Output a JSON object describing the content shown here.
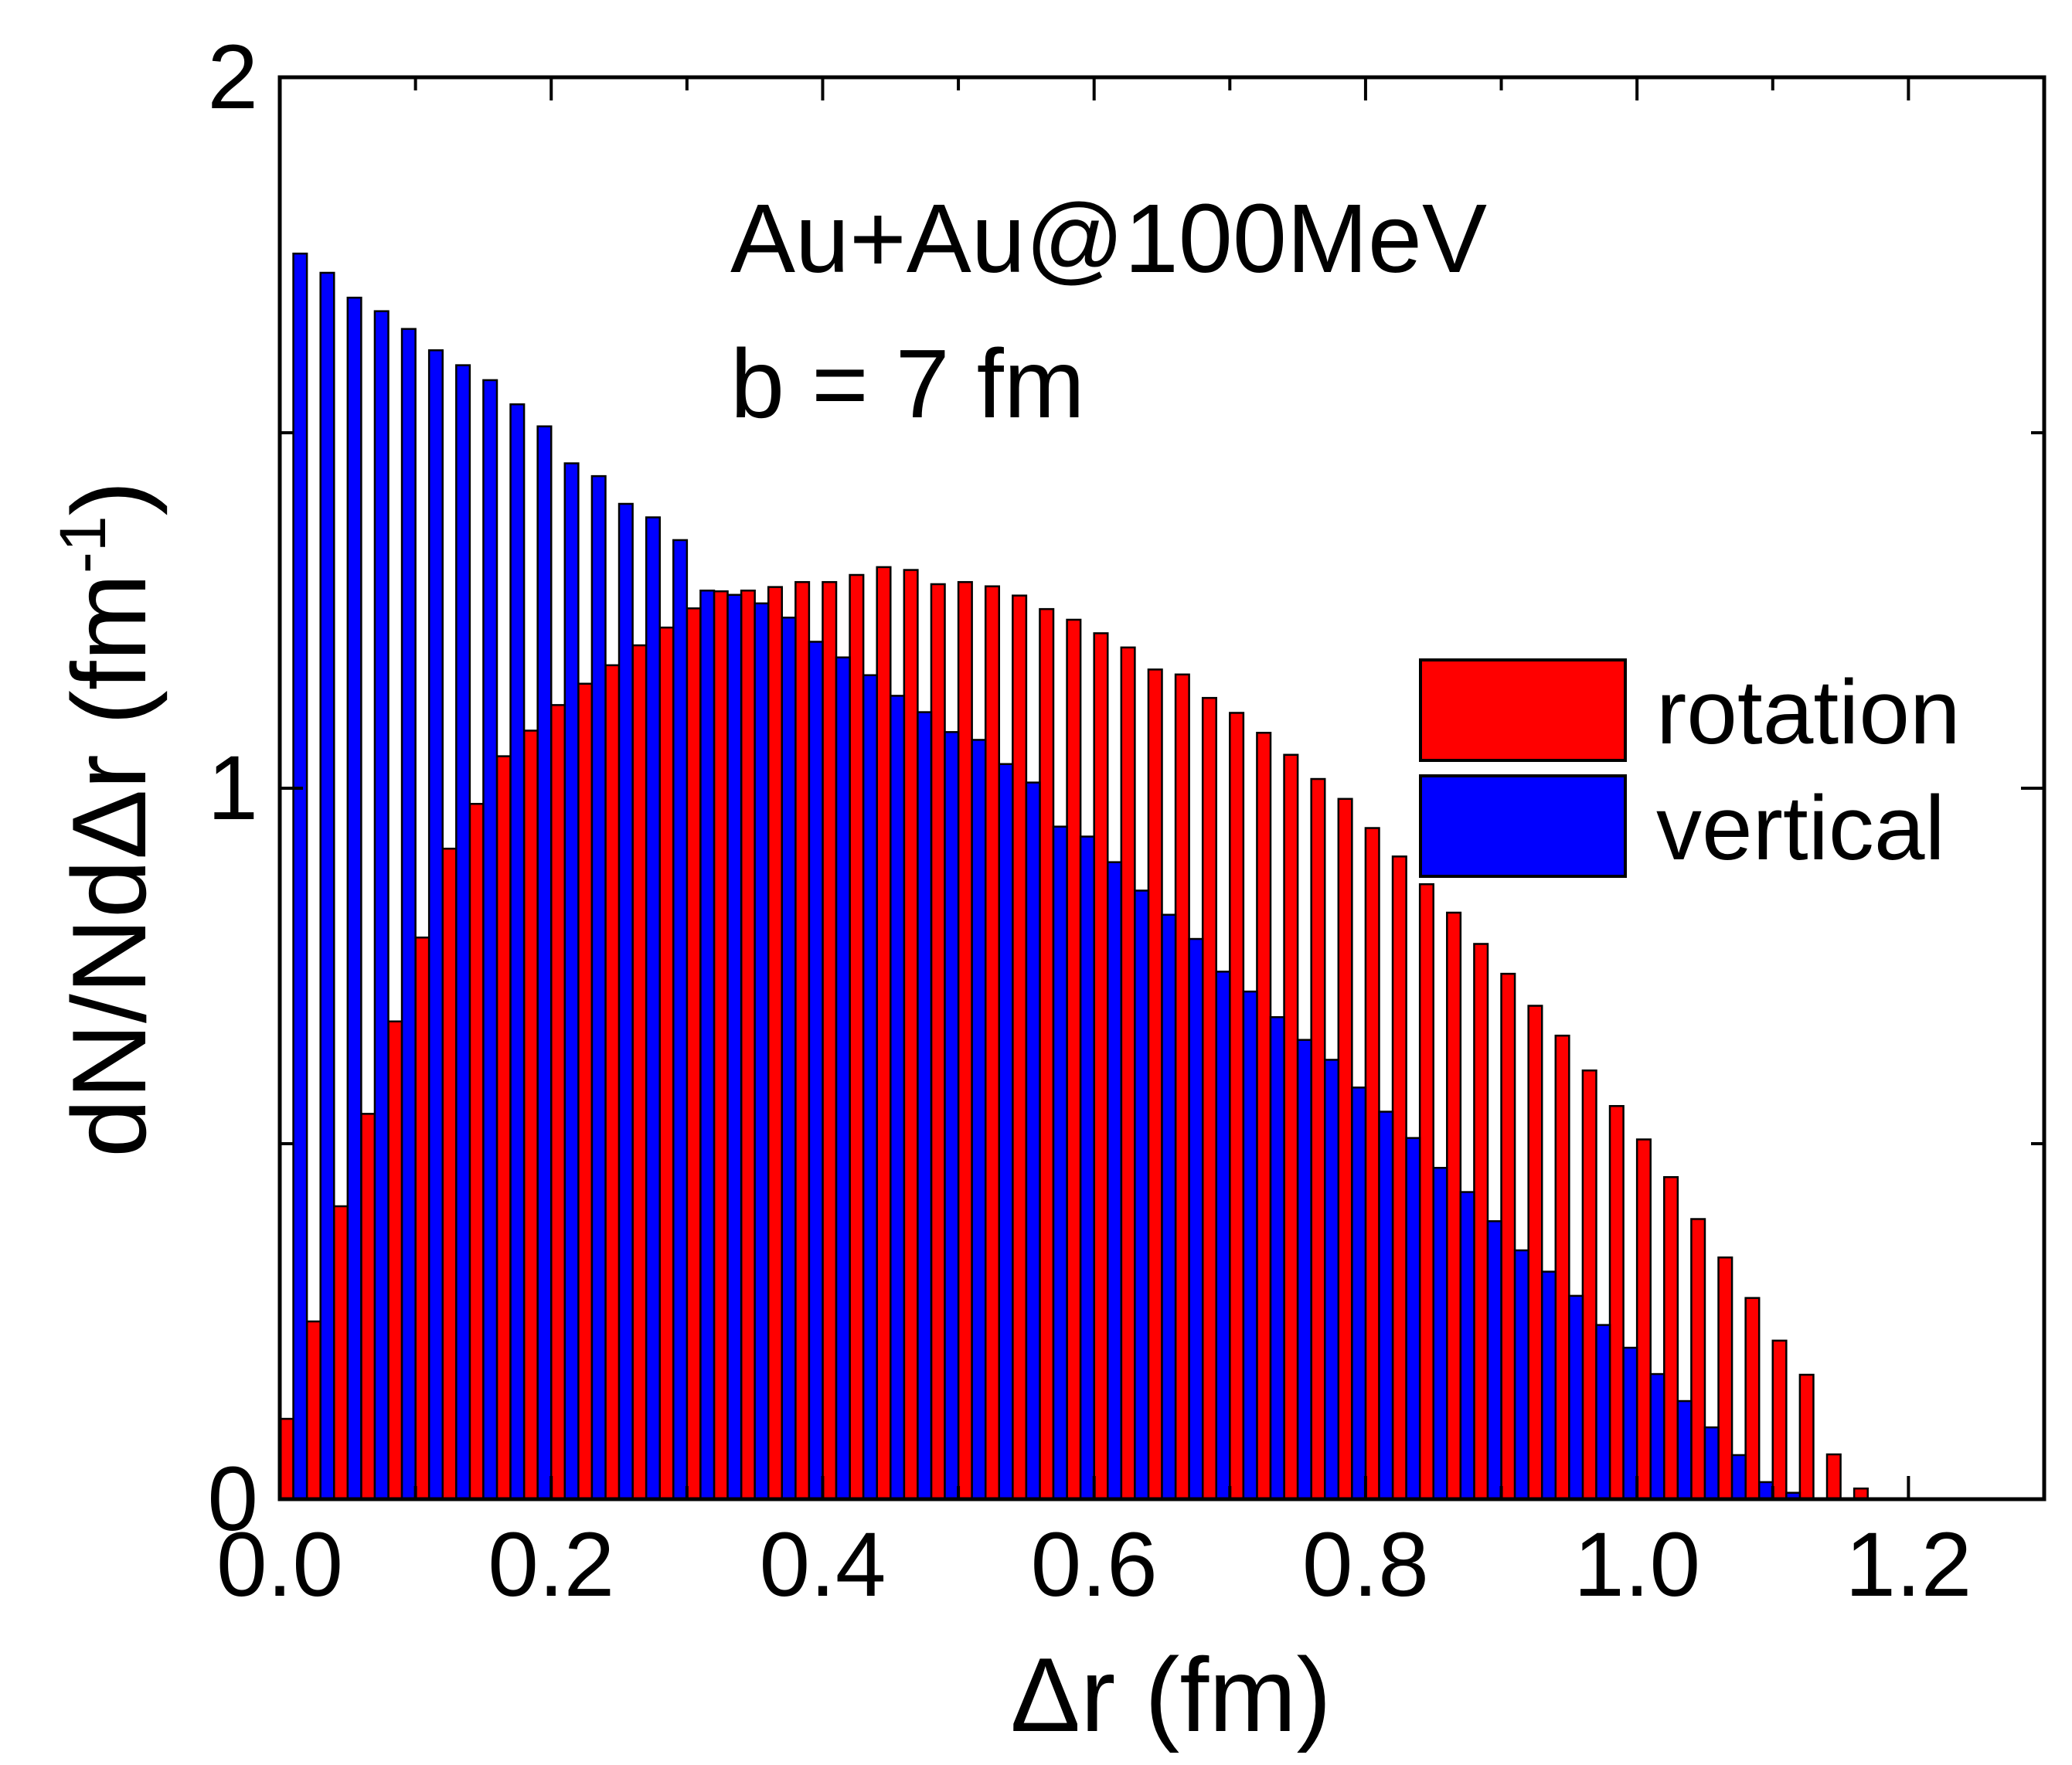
{
  "chart_data": {
    "type": "bar",
    "annotations": [
      "Au+Au@100MeV",
      "b = 7 fm"
    ],
    "xlabel": "Δr (fm)",
    "ylabel_main": "dN/NdΔr (fm",
    "ylabel_sup": "-1",
    "ylabel_close": ")",
    "xlim": [
      0.0,
      1.3
    ],
    "ylim": [
      0,
      2
    ],
    "x_ticks": [
      0.0,
      0.2,
      0.4,
      0.6,
      0.8,
      1.0,
      1.2
    ],
    "x_tick_labels": [
      "0.0",
      "0.2",
      "0.4",
      "0.6",
      "0.8",
      "1.0",
      "1.2"
    ],
    "y_ticks": [
      0,
      1,
      2
    ],
    "y_tick_labels": [
      "0",
      "1",
      "2"
    ],
    "y_minor_ticks": [
      0.5,
      1.5
    ],
    "x_minor_ticks": [
      0.1,
      0.3,
      0.5,
      0.7,
      0.9,
      1.1
    ],
    "bin_width": 0.02,
    "legend_position": "right",
    "colors": {
      "rotation": "#ff0000",
      "vertical": "#0000ff"
    },
    "series": [
      {
        "name": "rotation",
        "bin_centers": [
          0.005,
          0.025,
          0.045,
          0.065,
          0.085,
          0.105,
          0.125,
          0.145,
          0.165,
          0.185,
          0.205,
          0.225,
          0.245,
          0.265,
          0.285,
          0.305,
          0.325,
          0.345,
          0.365,
          0.385,
          0.405,
          0.425,
          0.445,
          0.465,
          0.485,
          0.505,
          0.525,
          0.545,
          0.565,
          0.585,
          0.605,
          0.625,
          0.645,
          0.665,
          0.685,
          0.705,
          0.725,
          0.745,
          0.765,
          0.785,
          0.805,
          0.825,
          0.845,
          0.865,
          0.885,
          0.905,
          0.925,
          0.945,
          0.965,
          0.985,
          1.005,
          1.025,
          1.045,
          1.065,
          1.085,
          1.105,
          1.125,
          1.145,
          1.165
        ],
        "values": [
          0.113,
          0.25,
          0.412,
          0.542,
          0.672,
          0.79,
          0.915,
          0.978,
          1.045,
          1.081,
          1.117,
          1.147,
          1.173,
          1.201,
          1.226,
          1.253,
          1.277,
          1.278,
          1.283,
          1.29,
          1.29,
          1.3,
          1.311,
          1.307,
          1.287,
          1.29,
          1.284,
          1.271,
          1.252,
          1.237,
          1.218,
          1.198,
          1.167,
          1.16,
          1.127,
          1.106,
          1.078,
          1.047,
          1.013,
          0.985,
          0.944,
          0.904,
          0.865,
          0.825,
          0.781,
          0.739,
          0.694,
          0.652,
          0.603,
          0.553,
          0.506,
          0.453,
          0.394,
          0.34,
          0.283,
          0.223,
          0.175,
          0.063,
          0.015
        ]
      },
      {
        "name": "vertical",
        "bin_centers": [
          0.015,
          0.035,
          0.055,
          0.075,
          0.095,
          0.115,
          0.135,
          0.155,
          0.175,
          0.195,
          0.215,
          0.235,
          0.255,
          0.275,
          0.295,
          0.315,
          0.335,
          0.355,
          0.375,
          0.395,
          0.415,
          0.435,
          0.455,
          0.475,
          0.495,
          0.515,
          0.535,
          0.555,
          0.575,
          0.595,
          0.615,
          0.635,
          0.655,
          0.675,
          0.695,
          0.715,
          0.735,
          0.755,
          0.775,
          0.795,
          0.815,
          0.835,
          0.855,
          0.875,
          0.895,
          0.915,
          0.935,
          0.955,
          0.975,
          0.995,
          1.015,
          1.035,
          1.055,
          1.075,
          1.095,
          1.115
        ],
        "values": [
          1.752,
          1.725,
          1.69,
          1.671,
          1.646,
          1.616,
          1.595,
          1.574,
          1.54,
          1.509,
          1.457,
          1.439,
          1.4,
          1.381,
          1.349,
          1.278,
          1.272,
          1.26,
          1.24,
          1.206,
          1.184,
          1.159,
          1.13,
          1.107,
          1.079,
          1.068,
          1.034,
          1.008,
          0.946,
          0.932,
          0.896,
          0.856,
          0.822,
          0.788,
          0.742,
          0.714,
          0.678,
          0.646,
          0.618,
          0.579,
          0.545,
          0.508,
          0.466,
          0.432,
          0.391,
          0.35,
          0.32,
          0.286,
          0.245,
          0.213,
          0.176,
          0.138,
          0.101,
          0.062,
          0.024,
          0.009
        ]
      }
    ],
    "legend": [
      "rotation",
      "vertical"
    ]
  }
}
